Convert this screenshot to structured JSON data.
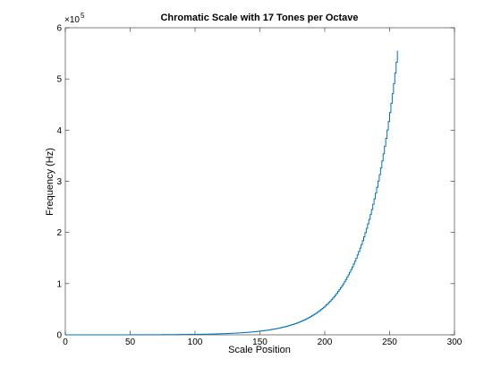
{
  "chart_data": {
    "type": "line",
    "title": "Chromatic Scale with 17 Tones per Octave",
    "xlabel": "Scale Position",
    "ylabel": "Frequency (Hz)",
    "xlim": [
      0,
      300
    ],
    "ylim": [
      0,
      600000
    ],
    "x_ticks": [
      0,
      50,
      100,
      150,
      200,
      250,
      300
    ],
    "y_ticks": [
      0,
      1,
      2,
      3,
      4,
      5,
      6
    ],
    "y_exponent_label": "×10",
    "y_exponent_power": "5",
    "grid": false,
    "line_color": "#0072BD",
    "series": [
      {
        "x": [
          1,
          256
        ],
        "y_start": 16.35,
        "y_end": 555000,
        "tones_per_octave": 17,
        "shape": "staircase exponential growth"
      }
    ]
  }
}
